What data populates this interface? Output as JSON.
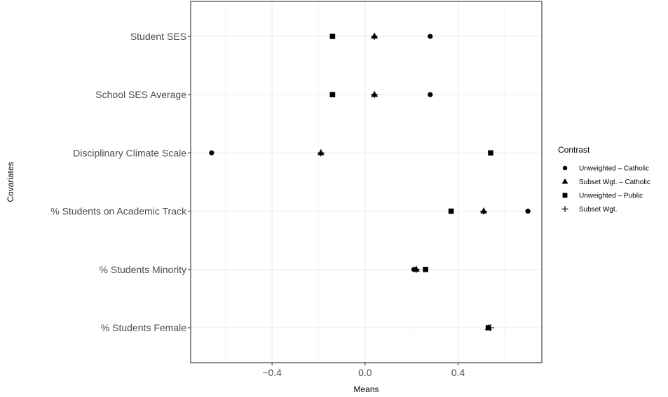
{
  "chart_data": {
    "type": "scatter",
    "xlabel": "Means",
    "ylabel": "Covariates",
    "xlim": [
      -0.75,
      0.76
    ],
    "x_ticks": [
      -0.4,
      0.0,
      0.4
    ],
    "x_tick_labels": [
      "−0.4",
      "0.0",
      "0.4"
    ],
    "categories": [
      "Student SES",
      "School SES Average",
      "Disciplinary Climate Scale",
      "% Students on Academic Track",
      "% Students Minority",
      "% Students Female"
    ],
    "grid": true,
    "legend": {
      "title": "Contrast",
      "position": "right"
    },
    "series": [
      {
        "name": "Unweighted – Catholic",
        "shape": "circle",
        "values": [
          0.28,
          0.28,
          -0.66,
          0.7,
          0.21,
          0.53
        ]
      },
      {
        "name": "Subset Wgt. – Catholic",
        "shape": "triangle",
        "values": [
          0.04,
          0.04,
          -0.19,
          0.51,
          0.22,
          0.53
        ]
      },
      {
        "name": "Unweighted – Public",
        "shape": "square",
        "values": [
          -0.14,
          -0.14,
          0.54,
          0.37,
          0.26,
          0.53
        ]
      },
      {
        "name": "Subset Wgt.",
        "shape": "plus",
        "values": [
          0.04,
          0.04,
          -0.19,
          0.51,
          0.22,
          0.54
        ]
      }
    ]
  }
}
